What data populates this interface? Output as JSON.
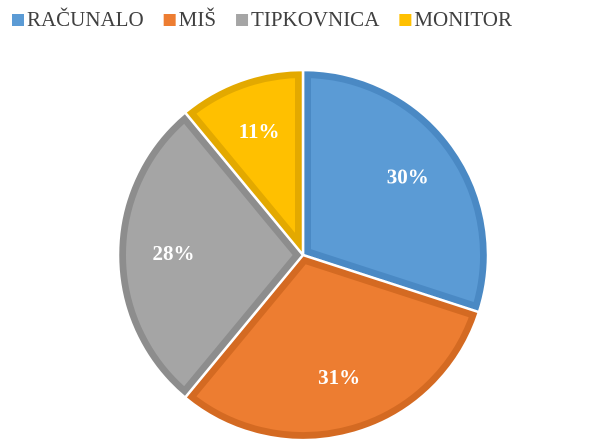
{
  "chart_data": {
    "type": "pie",
    "categories": [
      "RAČUNALO",
      "MIŠ",
      "TIPKOVNICA",
      "MONITOR"
    ],
    "values": [
      30,
      31,
      28,
      11
    ],
    "value_labels": [
      "30%",
      "31%",
      "28%",
      "11%"
    ],
    "colors": [
      "#5b9bd5",
      "#ed7d31",
      "#a5a5a5",
      "#ffc000"
    ],
    "border_colors": [
      "#4a89c4",
      "#d46a22",
      "#8d8d8d",
      "#e3a900"
    ],
    "legend": "top"
  }
}
